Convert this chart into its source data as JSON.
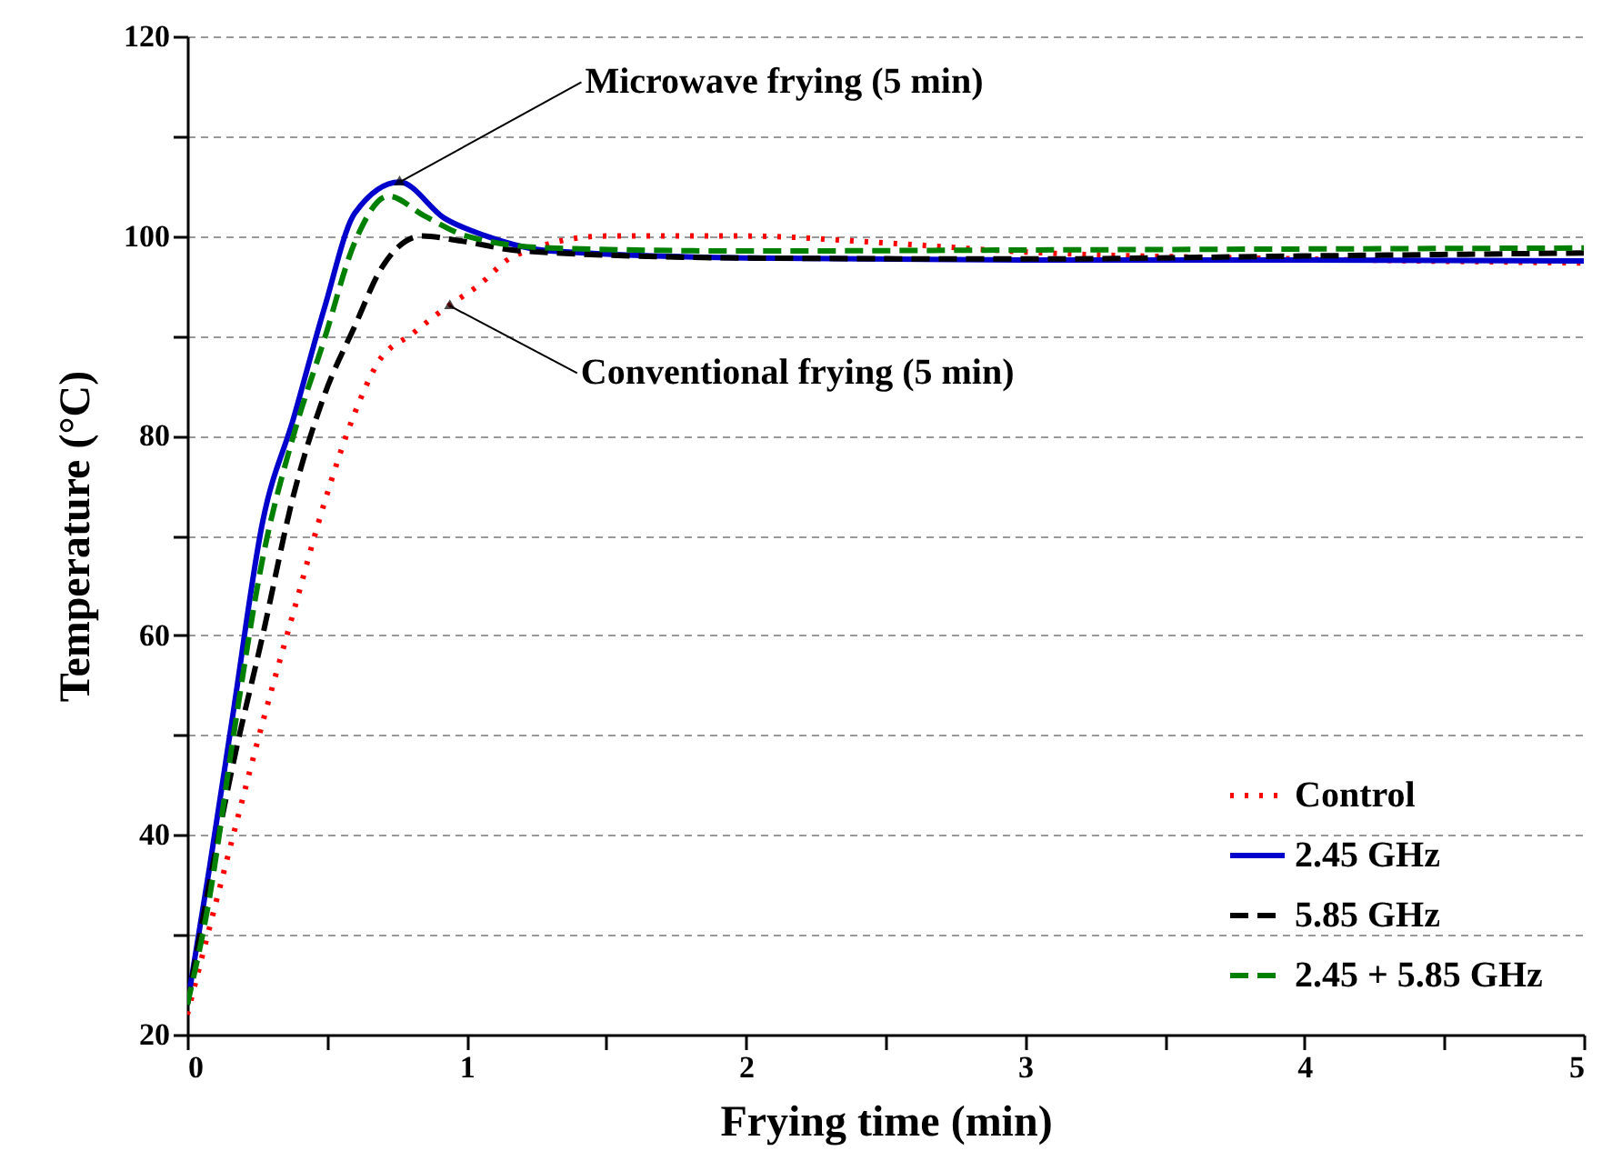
{
  "chart_data": {
    "type": "line",
    "xlabel": "Frying time (min)",
    "ylabel": "Temperature (°C)",
    "xlim": [
      0,
      5
    ],
    "xticks": [
      0,
      {
        "value": 0.5,
        "label": null
      },
      1,
      {
        "value": 1.5,
        "label": null
      },
      2,
      {
        "value": 2.5,
        "label": null
      },
      3,
      {
        "value": 3.5,
        "label": null
      },
      4,
      {
        "value": 4.5,
        "label": null
      },
      5
    ],
    "ylim": [
      20,
      120
    ],
    "yticks": [
      20,
      {
        "value": 30,
        "label": null
      },
      40,
      {
        "value": 50,
        "label": null
      },
      60,
      {
        "value": 70,
        "label": null
      },
      80,
      {
        "value": 90,
        "label": null
      },
      100,
      {
        "value": 110,
        "label": null
      },
      120
    ],
    "grid": "y",
    "legend": "bottom right",
    "annotations": [
      {
        "text": "Microwave frying (5 min)",
        "x": 0.76,
        "y": 105.4
      },
      {
        "text": "Conventional frying (5 min)",
        "x": 0.94,
        "y": 93
      }
    ],
    "series": [
      {
        "name": "Control",
        "color": "#ff0000",
        "line_style": "dotted",
        "x": [
          0,
          0.163,
          0.27,
          0.38,
          0.49,
          0.6,
          0.68,
          0.81,
          0.92,
          1.04,
          1.17,
          1.5,
          2,
          2.5,
          3,
          4,
          5
        ],
        "values": [
          22,
          39.8,
          51.3,
          62.3,
          73.2,
          82.3,
          87.2,
          90.3,
          92.7,
          95,
          98,
          100,
          100,
          99.3,
          98.4,
          97.7,
          97.3
        ]
      },
      {
        "name": "2.45 GHz",
        "color": "#0000cc",
        "line_style": "solid",
        "x": [
          0,
          0.08,
          0.163,
          0.27,
          0.38,
          0.49,
          0.6,
          0.76,
          0.92,
          1.07,
          1.3,
          2,
          3,
          4,
          5
        ],
        "values": [
          23,
          36.8,
          52,
          71.4,
          81.7,
          92.7,
          102.3,
          105.4,
          101.8,
          100,
          98.5,
          97.8,
          97.6,
          97.6,
          97.5
        ]
      },
      {
        "name": "5.85 GHz",
        "color": "#000000",
        "line_style": "dashed",
        "x": [
          0,
          0.163,
          0.27,
          0.38,
          0.49,
          0.6,
          0.7,
          0.84,
          0.98,
          1.2,
          2,
          3,
          4,
          5
        ],
        "values": [
          23,
          47,
          60,
          74,
          84,
          91,
          97,
          100,
          99.5,
          98.5,
          97.8,
          97.7,
          98,
          98.3
        ]
      },
      {
        "name": "2.45 + 5.85 GHz",
        "color": "#008000",
        "line_style": "dashed",
        "x": [
          0,
          0.08,
          0.163,
          0.27,
          0.38,
          0.49,
          0.6,
          0.72,
          0.85,
          1,
          1.3,
          2,
          3,
          4,
          5
        ],
        "values": [
          23,
          33.8,
          49.5,
          67.7,
          80,
          89.6,
          99.4,
          104,
          102,
          100,
          98.8,
          98.5,
          98.6,
          98.7,
          98.8
        ]
      }
    ]
  }
}
